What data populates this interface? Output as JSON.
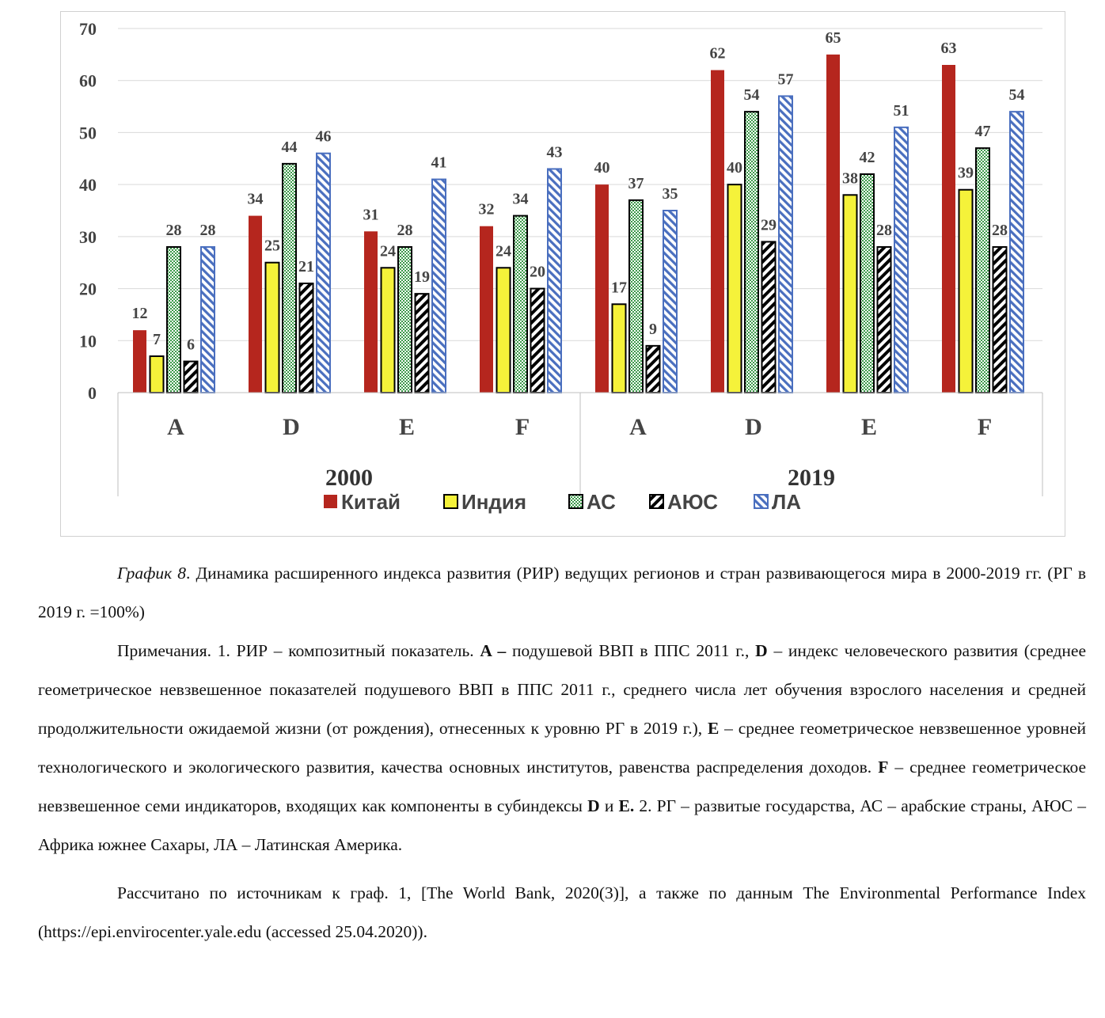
{
  "chart_data": {
    "type": "bar",
    "groups": [
      {
        "year": "2000",
        "categories": [
          "A",
          "D",
          "E",
          "F"
        ]
      },
      {
        "year": "2019",
        "categories": [
          "A",
          "D",
          "E",
          "F"
        ]
      }
    ],
    "series": [
      {
        "name": "Китай",
        "color": "#b5261e",
        "pattern": "solid",
        "values": [
          12,
          34,
          31,
          32,
          40,
          62,
          65,
          63
        ]
      },
      {
        "name": "Индия",
        "color": "#f5f23a",
        "pattern": "solid",
        "values": [
          7,
          25,
          24,
          24,
          17,
          40,
          38,
          39
        ]
      },
      {
        "name": "АС",
        "color": "#3c9a4a",
        "pattern": "checker",
        "values": [
          28,
          44,
          28,
          34,
          37,
          54,
          42,
          47
        ]
      },
      {
        "name": "АЮС",
        "color": "#000000",
        "pattern": "diagonal",
        "values": [
          6,
          21,
          19,
          20,
          9,
          29,
          28,
          28
        ]
      },
      {
        "name": "ЛА",
        "color": "#4a6fbf",
        "pattern": "diagonal",
        "values": [
          28,
          46,
          41,
          43,
          35,
          57,
          51,
          54
        ]
      }
    ],
    "ylim": [
      0,
      70
    ],
    "yticks": [
      0,
      10,
      20,
      30,
      40,
      50,
      60,
      70
    ],
    "grid": true,
    "legend": "bottom"
  },
  "caption": {
    "title_italic": "График 8",
    "title_rest": ". Динамика расширенного индекса развития (РИР) ведущих регионов и стран развивающегося мира в 2000-2019 гг. (РГ в 2019 г. =100%)"
  },
  "notes": {
    "n1": "Примечания. 1. РИР – композитный показатель.  ",
    "bA": "A –",
    "n2": " подушевой ВВП в ППС 2011 г., ",
    "bD": "D",
    "n3": " – индекс человеческого развития (среднее геометрическое невзвешенное показателей подушевого ВВП в ППС 2011 г., среднего числа лет обучения взрослого населения и средней продолжительности ожидаемой жизни (от рождения), отнесенных к уровню РГ в 2019 г.), ",
    "bE": "E",
    "n4": " – среднее геометрическое невзвешенное уровней технологического и экологического развития, качества основных институтов, равенства распределения доходов. ",
    "bF": "F",
    "n5": " – среднее геометрическое невзвешенное семи индикаторов, входящих как компоненты в субиндексы ",
    "bD2": "D",
    "n6": " и ",
    "bE2": "E.",
    "n7": " 2. РГ – развитые государства, АС – арабские страны, АЮС – Африка южнее Сахары, ЛА – Латинская Америка."
  },
  "source": {
    "text": "Рассчитано по источникам к граф. 1, [The World Bank, 2020(3)], а также по данным The Environmental Performance Index (https://epi.envirocenter.yale.edu (accessed 25.04.2020))."
  }
}
